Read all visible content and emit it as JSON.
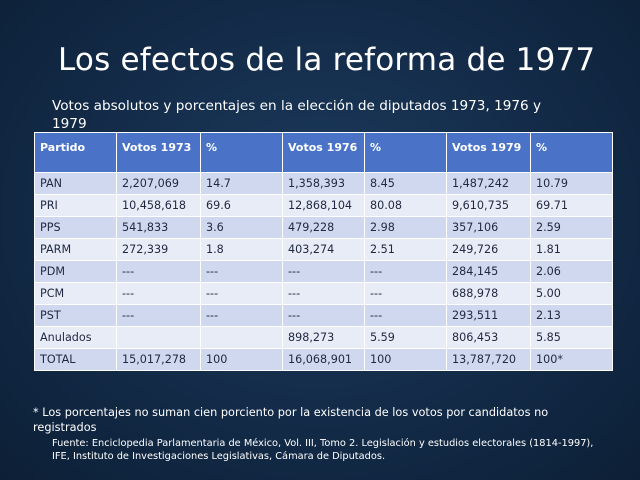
{
  "slide": {
    "title": "Los efectos de la reforma de 1977",
    "subtitle": "Votos absolutos y porcentajes en la elección de diputados 1973, 1976 y 1979",
    "footnote": "* Los porcentajes no suman cien porciento por la existencia de los votos por candidatos no registrados",
    "source": "Fuente: Enciclopedia Parlamentaria de México, Vol. III, Tomo 2. Legislación y estudios electorales (1814-1997), IFE, Instituto de Investigaciones Legislativas, Cámara de Diputados."
  },
  "table": {
    "headers": [
      "Partido",
      "Votos 1973",
      "%",
      "Votos 1976",
      "%",
      "Votos 1979",
      "%"
    ],
    "rows": [
      [
        "PAN",
        "2,207,069",
        "14.7",
        "1,358,393",
        "8.45",
        "1,487,242",
        "10.79"
      ],
      [
        "PRI",
        "10,458,618",
        "69.6",
        "12,868,104",
        "80.08",
        "9,610,735",
        "69.71"
      ],
      [
        "PPS",
        "541,833",
        "3.6",
        "479,228",
        "2.98",
        "357,106",
        "2.59"
      ],
      [
        "PARM",
        "272,339",
        "1.8",
        "403,274",
        "2.51",
        "249,726",
        "1.81"
      ],
      [
        "PDM",
        "---",
        "---",
        "---",
        "---",
        "284,145",
        "2.06"
      ],
      [
        "PCM",
        "---",
        "---",
        "---",
        "---",
        "688,978",
        "5.00"
      ],
      [
        "PST",
        "---",
        "---",
        "---",
        "---",
        "293,511",
        "2.13"
      ],
      [
        "Anulados",
        "",
        "",
        "898,273",
        "5.59",
        "806,453",
        "5.85"
      ],
      [
        "TOTAL",
        "15,017,278",
        "100",
        "16,068,901",
        "100",
        "13,787,720",
        "100*"
      ]
    ]
  }
}
